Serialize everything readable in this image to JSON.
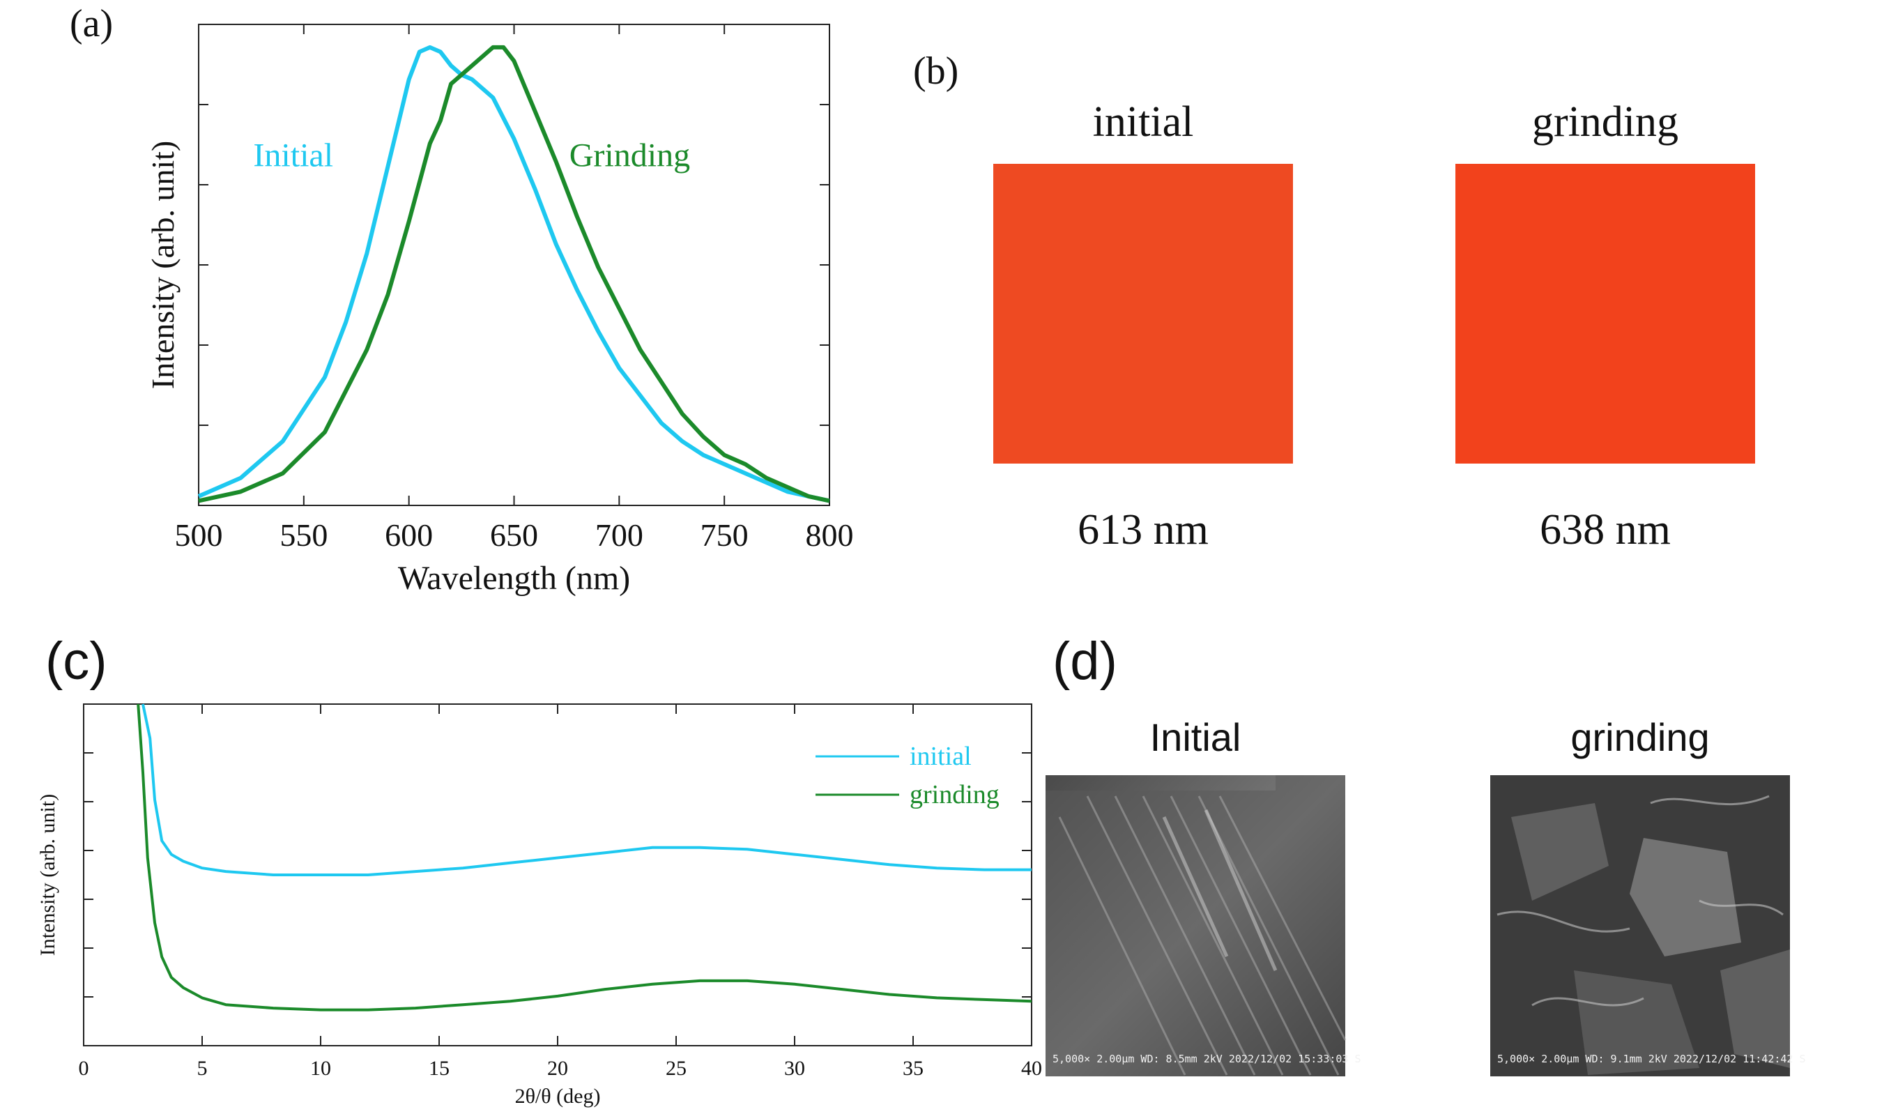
{
  "panels": {
    "a": {
      "label": "(a)"
    },
    "b": {
      "label": "(b)",
      "samples": [
        {
          "name": "initial",
          "wavelength": "613 nm",
          "color": "#ee4a22"
        },
        {
          "name": "grinding",
          "wavelength": "638 nm",
          "color": "#f2421c"
        }
      ]
    },
    "c": {
      "label": "(c)"
    },
    "d": {
      "label": "(d)",
      "images": [
        {
          "title": "Initial",
          "caption": "5,000× 2.00μm WD: 8.5mm   2kV 2022/12/02 15:33:03 S"
        },
        {
          "title": "grinding",
          "caption": "5,000× 2.00μm WD: 9.1mm   2kV 2022/12/02 11:42:42 S"
        }
      ]
    }
  },
  "chart_data": [
    {
      "id": "a",
      "type": "line",
      "title": "",
      "xlabel": "Wavelength (nm)",
      "ylabel": "Intensity (arb. unit)",
      "xlim": [
        500,
        800
      ],
      "ylim": [
        0,
        1.05
      ],
      "xticks": [
        500,
        550,
        600,
        650,
        700,
        750,
        800
      ],
      "yticks_count": 6,
      "show_ytick_labels": false,
      "series": [
        {
          "name": "Initial",
          "color": "#1ec8f0",
          "x": [
            500,
            520,
            540,
            560,
            570,
            580,
            590,
            600,
            605,
            610,
            615,
            620,
            625,
            630,
            640,
            650,
            660,
            670,
            680,
            690,
            700,
            710,
            720,
            730,
            740,
            750,
            760,
            770,
            780,
            790,
            800
          ],
          "y": [
            0.02,
            0.06,
            0.14,
            0.28,
            0.4,
            0.55,
            0.74,
            0.93,
            0.99,
            1.0,
            0.99,
            0.96,
            0.94,
            0.93,
            0.89,
            0.8,
            0.69,
            0.57,
            0.47,
            0.38,
            0.3,
            0.24,
            0.18,
            0.14,
            0.11,
            0.09,
            0.07,
            0.05,
            0.03,
            0.02,
            0.01
          ]
        },
        {
          "name": "Grinding",
          "color": "#1b8a2a",
          "x": [
            500,
            520,
            540,
            560,
            580,
            590,
            600,
            610,
            615,
            620,
            630,
            640,
            645,
            650,
            660,
            670,
            680,
            690,
            700,
            710,
            720,
            730,
            740,
            750,
            760,
            770,
            780,
            790,
            800
          ],
          "y": [
            0.01,
            0.03,
            0.07,
            0.16,
            0.34,
            0.46,
            0.62,
            0.79,
            0.84,
            0.92,
            0.96,
            1.0,
            1.0,
            0.97,
            0.86,
            0.75,
            0.63,
            0.52,
            0.43,
            0.34,
            0.27,
            0.2,
            0.15,
            0.11,
            0.09,
            0.06,
            0.04,
            0.02,
            0.01
          ]
        }
      ],
      "annotations": [
        {
          "text": "Initial",
          "series": "Initial"
        },
        {
          "text": "Grinding",
          "series": "Grinding"
        }
      ]
    },
    {
      "id": "c",
      "type": "line",
      "title": "",
      "xlabel": "2θ/θ (deg)",
      "ylabel": "Intensity (arb. unit)",
      "xlim": [
        0,
        40
      ],
      "ylim": [
        0,
        1.0
      ],
      "xticks": [
        0,
        5,
        10,
        15,
        20,
        25,
        30,
        35,
        40
      ],
      "yticks_count": 7,
      "show_ytick_labels": false,
      "legend": "top-right",
      "series": [
        {
          "name": "initial",
          "color": "#1ec8f0",
          "x": [
            2.5,
            2.8,
            3.0,
            3.3,
            3.7,
            4.2,
            5,
            6,
            8,
            10,
            12,
            14,
            16,
            18,
            20,
            22,
            24,
            26,
            28,
            30,
            32,
            34,
            36,
            38,
            40
          ],
          "y": [
            1.0,
            0.9,
            0.72,
            0.6,
            0.56,
            0.54,
            0.52,
            0.51,
            0.5,
            0.5,
            0.5,
            0.51,
            0.52,
            0.535,
            0.55,
            0.565,
            0.58,
            0.58,
            0.575,
            0.56,
            0.545,
            0.53,
            0.52,
            0.515,
            0.515
          ]
        },
        {
          "name": "grinding",
          "color": "#1b8a2a",
          "x": [
            2.3,
            2.5,
            2.7,
            3.0,
            3.3,
            3.7,
            4.2,
            5,
            6,
            8,
            10,
            12,
            14,
            16,
            18,
            20,
            22,
            24,
            26,
            28,
            30,
            32,
            34,
            36,
            38,
            40
          ],
          "y": [
            1.0,
            0.8,
            0.55,
            0.36,
            0.26,
            0.2,
            0.17,
            0.14,
            0.12,
            0.11,
            0.105,
            0.105,
            0.11,
            0.12,
            0.13,
            0.145,
            0.165,
            0.18,
            0.19,
            0.19,
            0.18,
            0.165,
            0.15,
            0.14,
            0.135,
            0.13
          ]
        }
      ]
    }
  ]
}
